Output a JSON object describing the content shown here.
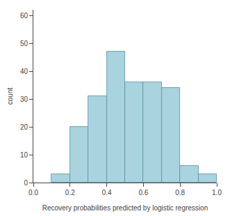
{
  "chart_data": {
    "type": "histogram",
    "bins": [
      0.1,
      0.2,
      0.3,
      0.4,
      0.5,
      0.6,
      0.7,
      0.8,
      0.9,
      1.0
    ],
    "values": [
      3,
      20,
      31,
      47,
      36,
      36,
      34,
      6,
      3
    ],
    "color": "#a8d3df",
    "xlabel": "Recovery probabilities predicted by logistic regression",
    "ylabel": "count",
    "xlim": [
      0.0,
      1.0
    ],
    "ylim": [
      0,
      62
    ],
    "xticks": [
      {
        "value": 0,
        "label": "0.0"
      },
      0.2,
      0.4,
      0.6,
      0.8,
      {
        "value": 1,
        "label": "1.0"
      }
    ],
    "yticks": [
      0,
      10,
      20,
      30,
      40,
      50,
      60
    ],
    "grid": false
  }
}
